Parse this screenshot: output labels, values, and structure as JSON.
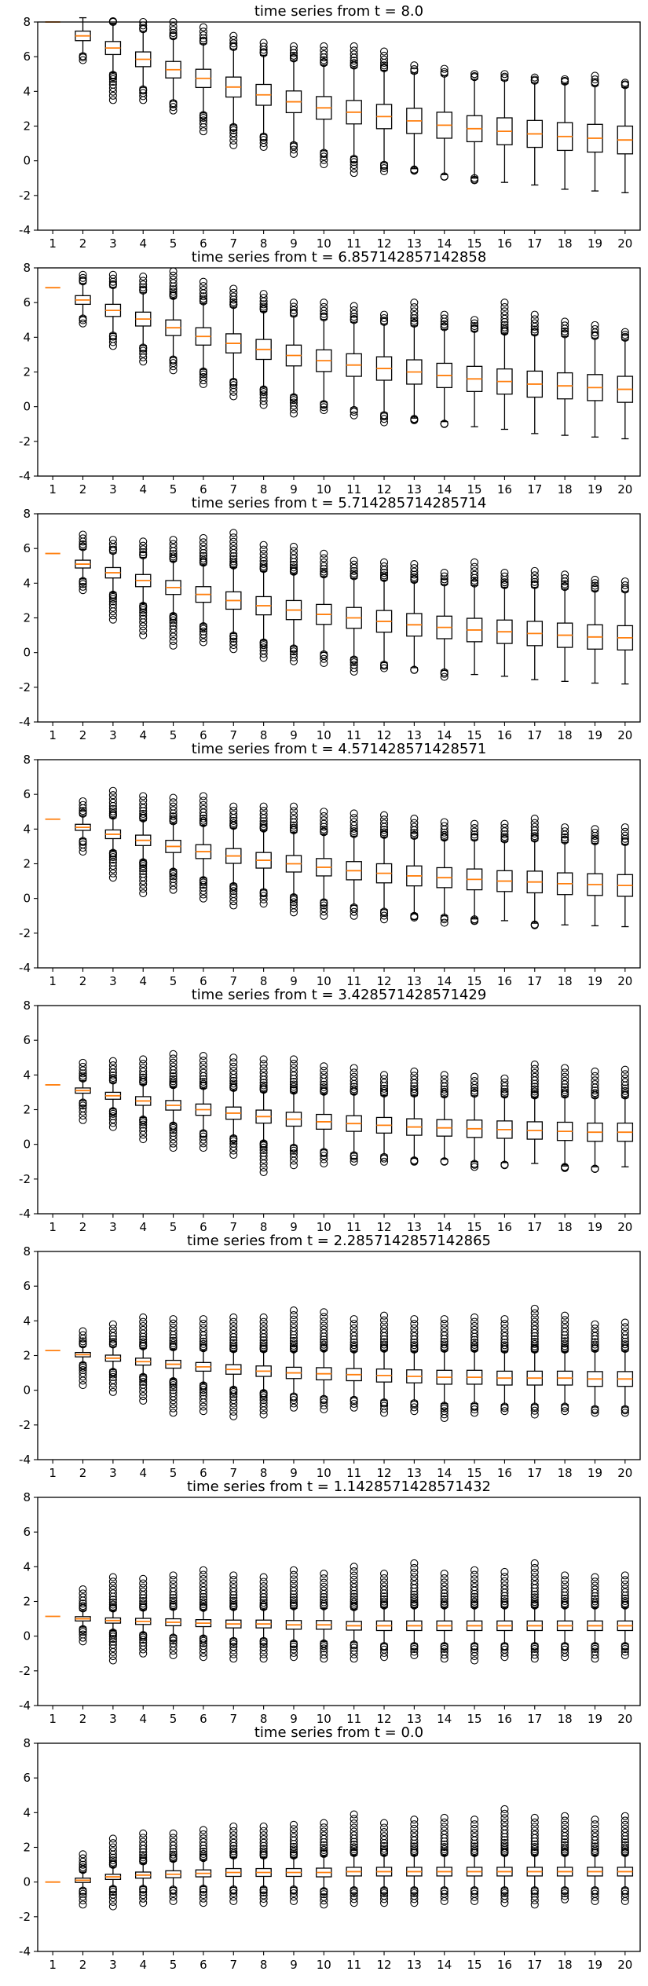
{
  "colors": {
    "median": "#ff7f0e",
    "box": "#000000",
    "background": "#ffffff"
  },
  "chart_data": [
    {
      "type": "boxplot",
      "title": "time series from t = 8.0",
      "xlabel": "",
      "ylabel": "",
      "ylim": [
        -4,
        8
      ],
      "yticks": [
        "-4",
        "-2",
        "0",
        "2",
        "4",
        "6",
        "8"
      ],
      "categories": [
        "1",
        "2",
        "3",
        "4",
        "5",
        "6",
        "7",
        "8",
        "9",
        "10",
        "11",
        "12",
        "13",
        "14",
        "15",
        "16",
        "17",
        "18",
        "19",
        "20"
      ],
      "medians": [
        8.0,
        7.2,
        6.5,
        5.85,
        5.25,
        4.75,
        4.25,
        3.8,
        3.4,
        3.05,
        2.8,
        2.55,
        2.3,
        2.05,
        1.85,
        1.7,
        1.55,
        1.4,
        1.3,
        1.2
      ],
      "spreads": [
        0.0,
        0.55,
        0.75,
        0.85,
        0.95,
        1.05,
        1.15,
        1.2,
        1.25,
        1.3,
        1.35,
        1.4,
        1.45,
        1.5,
        1.5,
        1.55,
        1.55,
        1.6,
        1.6,
        1.6
      ],
      "fliers_low": [
        8.0,
        5.8,
        3.5,
        3.5,
        2.9,
        1.7,
        0.9,
        0.8,
        0.4,
        -0.2,
        -0.7,
        -0.6,
        -0.5,
        -0.9,
        -1.0,
        -1.2,
        -1.2,
        -0.9,
        -1.7,
        -1.2
      ],
      "fliers_high": [
        8.0,
        8.0,
        8.0,
        8.0,
        8.0,
        7.7,
        7.2,
        6.8,
        6.6,
        6.6,
        6.6,
        6.3,
        5.5,
        5.3,
        5.0,
        5.0,
        4.8,
        4.7,
        4.9,
        4.5
      ]
    },
    {
      "type": "boxplot",
      "title": "time series from t = 6.857142857142858",
      "xlabel": "",
      "ylabel": "",
      "ylim": [
        -4,
        8
      ],
      "yticks": [
        "-4",
        "-2",
        "0",
        "2",
        "4",
        "6",
        "8"
      ],
      "categories": [
        "1",
        "2",
        "3",
        "4",
        "5",
        "6",
        "7",
        "8",
        "9",
        "10",
        "11",
        "12",
        "13",
        "14",
        "15",
        "16",
        "17",
        "18",
        "19",
        "20"
      ],
      "medians": [
        6.86,
        6.15,
        5.55,
        5.05,
        4.55,
        4.05,
        3.65,
        3.3,
        2.95,
        2.65,
        2.4,
        2.2,
        2.0,
        1.8,
        1.6,
        1.45,
        1.3,
        1.2,
        1.1,
        1.0
      ],
      "spreads": [
        0.0,
        0.5,
        0.7,
        0.8,
        0.9,
        1.0,
        1.1,
        1.15,
        1.2,
        1.25,
        1.3,
        1.35,
        1.4,
        1.4,
        1.45,
        1.45,
        1.5,
        1.5,
        1.5,
        1.5
      ],
      "fliers_low": [
        6.86,
        4.8,
        3.5,
        2.6,
        2.1,
        1.3,
        0.6,
        0.1,
        -0.4,
        -0.2,
        -0.5,
        -0.9,
        -0.7,
        -1.0,
        -0.9,
        -1.2,
        -1.1,
        -1.0,
        -1.2,
        -1.1
      ],
      "fliers_high": [
        6.86,
        7.6,
        7.6,
        7.5,
        7.8,
        7.2,
        6.8,
        6.5,
        6.0,
        6.0,
        5.8,
        5.3,
        6.0,
        5.3,
        5.0,
        6.0,
        5.3,
        4.9,
        4.7,
        4.3
      ]
    },
    {
      "type": "boxplot",
      "title": "time series from t = 5.714285714285714",
      "xlabel": "",
      "ylabel": "",
      "ylim": [
        -4,
        8
      ],
      "yticks": [
        "-4",
        "-2",
        "0",
        "2",
        "4",
        "6",
        "8"
      ],
      "categories": [
        "1",
        "2",
        "3",
        "4",
        "5",
        "6",
        "7",
        "8",
        "9",
        "10",
        "11",
        "12",
        "13",
        "14",
        "15",
        "16",
        "17",
        "18",
        "19",
        "20"
      ],
      "medians": [
        5.71,
        5.1,
        4.6,
        4.15,
        3.75,
        3.35,
        3.0,
        2.7,
        2.45,
        2.2,
        2.0,
        1.8,
        1.6,
        1.45,
        1.3,
        1.2,
        1.1,
        1.0,
        0.9,
        0.85
      ],
      "spreads": [
        0.0,
        0.45,
        0.6,
        0.7,
        0.8,
        0.9,
        1.0,
        1.05,
        1.1,
        1.15,
        1.2,
        1.25,
        1.3,
        1.3,
        1.35,
        1.35,
        1.4,
        1.4,
        1.4,
        1.4
      ],
      "fliers_low": [
        5.71,
        3.6,
        1.9,
        1.0,
        0.4,
        0.6,
        0.2,
        -0.3,
        -0.5,
        -0.6,
        -1.1,
        -0.9,
        -1.0,
        -1.4,
        -1.1,
        -1.2,
        -1.5,
        -1.2,
        -1.2,
        -1.3
      ],
      "fliers_high": [
        5.71,
        6.8,
        6.5,
        6.4,
        6.5,
        6.6,
        6.9,
        6.2,
        6.1,
        5.7,
        5.3,
        5.2,
        5.1,
        4.6,
        5.2,
        4.6,
        4.7,
        4.5,
        4.2,
        4.1
      ]
    },
    {
      "type": "boxplot",
      "title": "time series from t = 4.571428571428571",
      "xlabel": "",
      "ylabel": "",
      "ylim": [
        -4,
        8
      ],
      "yticks": [
        "-4",
        "-2",
        "0",
        "2",
        "4",
        "6",
        "8"
      ],
      "categories": [
        "1",
        "2",
        "3",
        "4",
        "5",
        "6",
        "7",
        "8",
        "9",
        "10",
        "11",
        "12",
        "13",
        "14",
        "15",
        "16",
        "17",
        "18",
        "19",
        "20"
      ],
      "medians": [
        4.57,
        4.1,
        3.7,
        3.35,
        3.0,
        2.7,
        2.45,
        2.2,
        2.0,
        1.8,
        1.6,
        1.45,
        1.3,
        1.2,
        1.1,
        1.0,
        0.95,
        0.85,
        0.8,
        0.75
      ],
      "spreads": [
        0.0,
        0.35,
        0.5,
        0.6,
        0.7,
        0.8,
        0.85,
        0.9,
        0.95,
        1.0,
        1.05,
        1.1,
        1.15,
        1.15,
        1.2,
        1.2,
        1.25,
        1.25,
        1.25,
        1.25
      ],
      "fliers_low": [
        4.57,
        2.7,
        1.2,
        0.3,
        0.5,
        0.0,
        -0.4,
        -0.3,
        -0.8,
        -1.0,
        -1.0,
        -1.2,
        -1.1,
        -1.4,
        -1.2,
        -1.0,
        -1.5,
        -1.2,
        -1.2,
        -1.6
      ],
      "fliers_high": [
        4.57,
        5.6,
        6.2,
        5.9,
        5.8,
        5.9,
        5.3,
        5.3,
        5.3,
        5.0,
        4.9,
        4.8,
        4.6,
        4.4,
        4.3,
        4.3,
        4.6,
        4.1,
        4.0,
        4.1
      ]
    },
    {
      "type": "boxplot",
      "title": "time series from t = 3.428571428571429",
      "xlabel": "",
      "ylabel": "",
      "ylim": [
        -4,
        8
      ],
      "yticks": [
        "-4",
        "-2",
        "0",
        "2",
        "4",
        "6",
        "8"
      ],
      "categories": [
        "1",
        "2",
        "3",
        "4",
        "5",
        "6",
        "7",
        "8",
        "9",
        "10",
        "11",
        "12",
        "13",
        "14",
        "15",
        "16",
        "17",
        "18",
        "19",
        "20"
      ],
      "medians": [
        3.43,
        3.1,
        2.8,
        2.5,
        2.25,
        2.0,
        1.8,
        1.6,
        1.45,
        1.3,
        1.2,
        1.1,
        1.0,
        0.95,
        0.9,
        0.85,
        0.8,
        0.75,
        0.7,
        0.7
      ],
      "spreads": [
        0.0,
        0.3,
        0.4,
        0.5,
        0.55,
        0.65,
        0.7,
        0.75,
        0.8,
        0.85,
        0.9,
        0.9,
        0.95,
        0.95,
        1.0,
        1.0,
        1.0,
        1.05,
        1.05,
        1.05
      ],
      "fliers_low": [
        3.43,
        1.4,
        1.0,
        0.3,
        -0.2,
        -0.2,
        -0.6,
        -1.6,
        -1.2,
        -1.1,
        -1.0,
        -1.0,
        -1.0,
        -1.0,
        -1.3,
        -1.2,
        -1.0,
        -1.3,
        -1.4,
        -1.0
      ],
      "fliers_high": [
        3.43,
        4.7,
        4.8,
        4.9,
        5.2,
        5.1,
        5.0,
        4.9,
        4.9,
        4.5,
        4.4,
        4.0,
        4.2,
        4.0,
        3.9,
        3.8,
        4.6,
        4.4,
        4.2,
        4.3
      ]
    },
    {
      "type": "boxplot",
      "title": "time series from t = 2.2857142857142865",
      "xlabel": "",
      "ylabel": "",
      "ylim": [
        -4,
        8
      ],
      "yticks": [
        "-4",
        "-2",
        "0",
        "2",
        "4",
        "6",
        "8"
      ],
      "categories": [
        "1",
        "2",
        "3",
        "4",
        "5",
        "6",
        "7",
        "8",
        "9",
        "10",
        "11",
        "12",
        "13",
        "14",
        "15",
        "16",
        "17",
        "18",
        "19",
        "20"
      ],
      "medians": [
        2.29,
        2.05,
        1.85,
        1.65,
        1.5,
        1.35,
        1.2,
        1.1,
        1.0,
        0.95,
        0.9,
        0.85,
        0.8,
        0.75,
        0.75,
        0.7,
        0.7,
        0.7,
        0.65,
        0.65
      ],
      "spreads": [
        0.0,
        0.25,
        0.35,
        0.4,
        0.45,
        0.5,
        0.55,
        0.6,
        0.65,
        0.7,
        0.7,
        0.75,
        0.75,
        0.8,
        0.8,
        0.8,
        0.8,
        0.8,
        0.85,
        0.85
      ],
      "fliers_low": [
        2.29,
        0.3,
        -0.1,
        -0.6,
        -1.3,
        -1.2,
        -1.5,
        -1.4,
        -1.0,
        -1.1,
        -1.0,
        -1.3,
        -1.2,
        -1.6,
        -1.3,
        -1.2,
        -1.4,
        -1.2,
        -1.3,
        -1.3
      ],
      "fliers_high": [
        2.29,
        3.4,
        3.8,
        4.2,
        4.1,
        4.1,
        4.2,
        4.2,
        4.6,
        4.5,
        4.1,
        4.3,
        4.1,
        4.1,
        4.2,
        4.1,
        4.7,
        4.3,
        3.8,
        3.9
      ]
    },
    {
      "type": "boxplot",
      "title": "time series from t = 1.1428571428571432",
      "xlabel": "",
      "ylabel": "",
      "ylim": [
        -4,
        8
      ],
      "yticks": [
        "-4",
        "-2",
        "0",
        "2",
        "4",
        "6",
        "8"
      ],
      "categories": [
        "1",
        "2",
        "3",
        "4",
        "5",
        "6",
        "7",
        "8",
        "9",
        "10",
        "11",
        "12",
        "13",
        "14",
        "15",
        "16",
        "17",
        "18",
        "19",
        "20"
      ],
      "medians": [
        1.14,
        1.0,
        0.9,
        0.85,
        0.8,
        0.75,
        0.7,
        0.7,
        0.65,
        0.65,
        0.6,
        0.6,
        0.6,
        0.6,
        0.6,
        0.6,
        0.6,
        0.6,
        0.6,
        0.6
      ],
      "spreads": [
        0.0,
        0.25,
        0.3,
        0.35,
        0.4,
        0.4,
        0.45,
        0.45,
        0.5,
        0.5,
        0.5,
        0.55,
        0.55,
        0.55,
        0.55,
        0.55,
        0.55,
        0.55,
        0.55,
        0.55
      ],
      "fliers_low": [
        1.14,
        -0.3,
        -1.4,
        -1.0,
        -1.1,
        -1.2,
        -1.3,
        -1.3,
        -1.2,
        -1.3,
        -1.3,
        -1.2,
        -1.1,
        -1.3,
        -1.4,
        -1.2,
        -1.3,
        -1.2,
        -1.3,
        -1.1
      ],
      "fliers_high": [
        1.14,
        2.7,
        3.4,
        3.3,
        3.5,
        3.8,
        3.5,
        3.4,
        3.8,
        3.6,
        4.0,
        3.6,
        4.2,
        3.6,
        3.8,
        3.7,
        4.2,
        3.5,
        3.4,
        3.5
      ]
    },
    {
      "type": "boxplot",
      "title": "time series from t = 0.0",
      "xlabel": "",
      "ylabel": "",
      "ylim": [
        -4,
        8
      ],
      "yticks": [
        "-4",
        "-2",
        "0",
        "2",
        "4",
        "6",
        "8"
      ],
      "categories": [
        "1",
        "2",
        "3",
        "4",
        "5",
        "6",
        "7",
        "8",
        "9",
        "10",
        "11",
        "12",
        "13",
        "14",
        "15",
        "16",
        "17",
        "18",
        "19",
        "20"
      ],
      "medians": [
        0.0,
        0.1,
        0.3,
        0.4,
        0.45,
        0.5,
        0.55,
        0.55,
        0.55,
        0.55,
        0.6,
        0.6,
        0.6,
        0.6,
        0.6,
        0.6,
        0.6,
        0.6,
        0.6,
        0.6
      ],
      "spreads": [
        0.0,
        0.25,
        0.3,
        0.35,
        0.4,
        0.4,
        0.45,
        0.45,
        0.45,
        0.5,
        0.5,
        0.5,
        0.5,
        0.5,
        0.5,
        0.5,
        0.5,
        0.5,
        0.5,
        0.5
      ],
      "fliers_low": [
        0.0,
        -1.3,
        -1.4,
        -1.2,
        -1.1,
        -1.2,
        -1.1,
        -1.2,
        -1.1,
        -1.3,
        -1.2,
        -1.2,
        -1.2,
        -1.1,
        -1.1,
        -1.2,
        -1.3,
        -1.0,
        -1.1,
        -1.1
      ],
      "fliers_high": [
        0.0,
        1.6,
        2.5,
        2.8,
        2.8,
        3.0,
        3.2,
        3.2,
        3.3,
        3.4,
        3.9,
        3.4,
        3.6,
        3.7,
        3.6,
        4.2,
        3.7,
        3.8,
        3.6,
        3.8
      ]
    }
  ]
}
